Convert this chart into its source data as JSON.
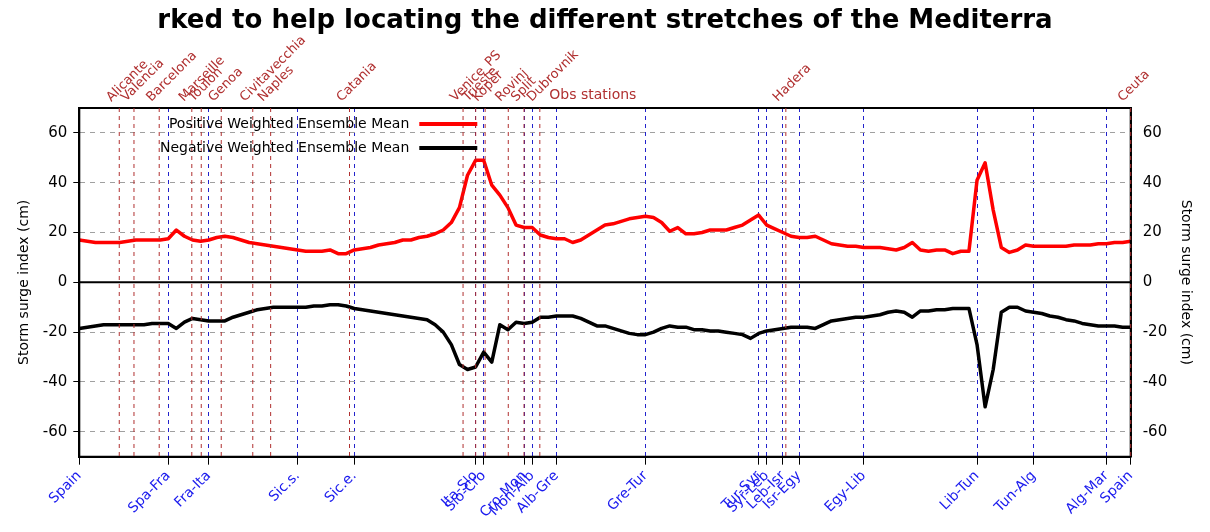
{
  "chart_data": {
    "type": "line",
    "title": "rked to help locating the different stretches of the Mediterra",
    "ylabel": "Storm surge index (cm)",
    "y2label": "Storm surge index (cm)",
    "categories": [
      "Spain",
      null,
      null,
      null,
      null,
      null,
      null,
      null,
      null,
      null,
      null,
      "Spa-Fra",
      null,
      null,
      null,
      null,
      "Fra-Ita",
      null,
      null,
      null,
      null,
      null,
      null,
      null,
      null,
      null,
      null,
      "Sic.s.",
      null,
      null,
      null,
      null,
      null,
      null,
      "Sic.e.",
      null,
      null,
      null,
      null,
      null,
      null,
      null,
      null,
      null,
      null,
      null,
      null,
      null,
      null,
      "Ita-Slo",
      "Slo-Cro",
      null,
      null,
      null,
      null,
      "Cro-Mon",
      "Mon-Alb",
      null,
      null,
      "Alb-Gre",
      null,
      null,
      null,
      null,
      null,
      null,
      null,
      null,
      null,
      null,
      "Gre-Tur",
      null,
      null,
      null,
      null,
      null,
      null,
      null,
      null,
      null,
      null,
      null,
      null,
      null,
      "Tur-Syr",
      "Syr-Leb",
      null,
      "Leb-Isr",
      null,
      "Isr-Egy",
      null,
      null,
      null,
      null,
      null,
      null,
      null,
      "Egy-Lib",
      null,
      null,
      null,
      null,
      null,
      null,
      null,
      null,
      null,
      null,
      null,
      null,
      null,
      "Lib-Tun",
      null,
      null,
      null,
      null,
      null,
      null,
      "Tun-Alg",
      null,
      null,
      null,
      null,
      null,
      null,
      null,
      null,
      "Alg-Mar",
      null,
      null,
      "Spain"
    ],
    "series": [
      {
        "name": "Positive Weighted Ensemble Mean",
        "color": "#ff0000",
        "values": [
          17,
          16.5,
          16,
          16,
          16,
          16,
          16.5,
          17,
          17,
          17,
          17,
          17.5,
          21,
          18.5,
          17,
          16.5,
          17,
          18,
          18.5,
          18,
          17,
          16,
          15.5,
          15,
          14.5,
          14,
          13.5,
          13,
          12.5,
          12.5,
          12.5,
          13,
          11.5,
          11.5,
          13,
          13.5,
          14,
          15,
          15.5,
          16,
          17,
          17,
          18,
          18.5,
          19.5,
          21,
          24,
          30,
          43,
          49,
          49,
          39,
          35,
          30,
          23,
          22,
          22,
          19,
          18,
          17.5,
          17.5,
          16,
          17,
          19,
          21,
          23,
          23.5,
          24.5,
          25.5,
          26,
          26.5,
          26,
          24,
          20.5,
          22,
          19.5,
          19.5,
          20,
          21,
          21,
          21,
          22,
          23,
          25,
          27,
          23,
          21.5,
          20,
          18.5,
          18,
          18,
          18.5,
          17,
          15.5,
          15,
          14.5,
          14.5,
          14,
          14,
          14,
          13.5,
          13,
          14,
          16,
          13,
          12.5,
          13,
          13,
          11.5,
          12.5,
          12.5,
          41,
          48,
          29,
          14,
          12,
          13,
          15,
          14.5,
          14.5,
          14.5,
          14.5,
          14.5,
          15,
          15,
          15,
          15.5,
          15.5,
          16,
          16,
          16.5
        ]
      },
      {
        "name": "Negative Weighted Ensemble Mean",
        "color": "#000000",
        "values": [
          -18.5,
          -18,
          -17.5,
          -17,
          -17,
          -17,
          -17,
          -17,
          -17,
          -16.5,
          -16.5,
          -16.5,
          -18.5,
          -16,
          -14.5,
          -15,
          -15.5,
          -15.5,
          -15.5,
          -14,
          -13,
          -12,
          -11,
          -10.5,
          -10,
          -10,
          -10,
          -10,
          -10,
          -9.5,
          -9.5,
          -9,
          -9,
          -9.5,
          -10.5,
          -11,
          -11.5,
          -12,
          -12.5,
          -13,
          -13.5,
          -14,
          -14.5,
          -15,
          -17,
          -20,
          -25,
          -33,
          -35,
          -34,
          -28,
          -32,
          -17,
          -19,
          -16,
          -16.5,
          -16,
          -14,
          -14,
          -13.5,
          -13.5,
          -13.5,
          -14.5,
          -16,
          -17.5,
          -17.5,
          -18.5,
          -19.5,
          -20.5,
          -21,
          -21,
          -20,
          -18.5,
          -17.5,
          -18,
          -18,
          -19,
          -19,
          -19.5,
          -19.5,
          -20,
          -20.5,
          -21,
          -22.5,
          -20.5,
          -19.5,
          -19,
          -18.5,
          -18,
          -18,
          -18,
          -18.5,
          -17,
          -15.5,
          -15,
          -14.5,
          -14,
          -14,
          -13.5,
          -13,
          -12,
          -11.5,
          -12,
          -14,
          -11.5,
          -11.5,
          -11,
          -11,
          -10.5,
          -10.5,
          -10.5,
          -25,
          -50,
          -35,
          -12,
          -10,
          -10,
          -11.5,
          -12,
          -12.5,
          -13.5,
          -14,
          -15,
          -15.5,
          -16.5,
          -17,
          -17.5,
          -17.5,
          -17.5,
          -18,
          -18
        ]
      }
    ],
    "ylim": [
      -70,
      70
    ],
    "yticks": [
      -60,
      -40,
      -20,
      0,
      20,
      40,
      60
    ],
    "y2lim": [
      -70,
      70
    ],
    "y2ticks": [
      -60,
      -40,
      -20,
      0,
      20,
      40,
      60
    ],
    "grid": true,
    "legend": "top left",
    "line_style": "solid",
    "annotations": [
      "Obs stations",
      "Alicante",
      "Valencia",
      "Barcelona",
      "Marseille",
      "Toulon",
      "Genoa",
      "Civitavecchia",
      "Naples",
      "Catania",
      "Venice_PS",
      "Trieste",
      "Koper",
      "Rovinj",
      "Split",
      "Dubrovnik",
      "Hadera",
      "Ceuta"
    ]
  }
}
